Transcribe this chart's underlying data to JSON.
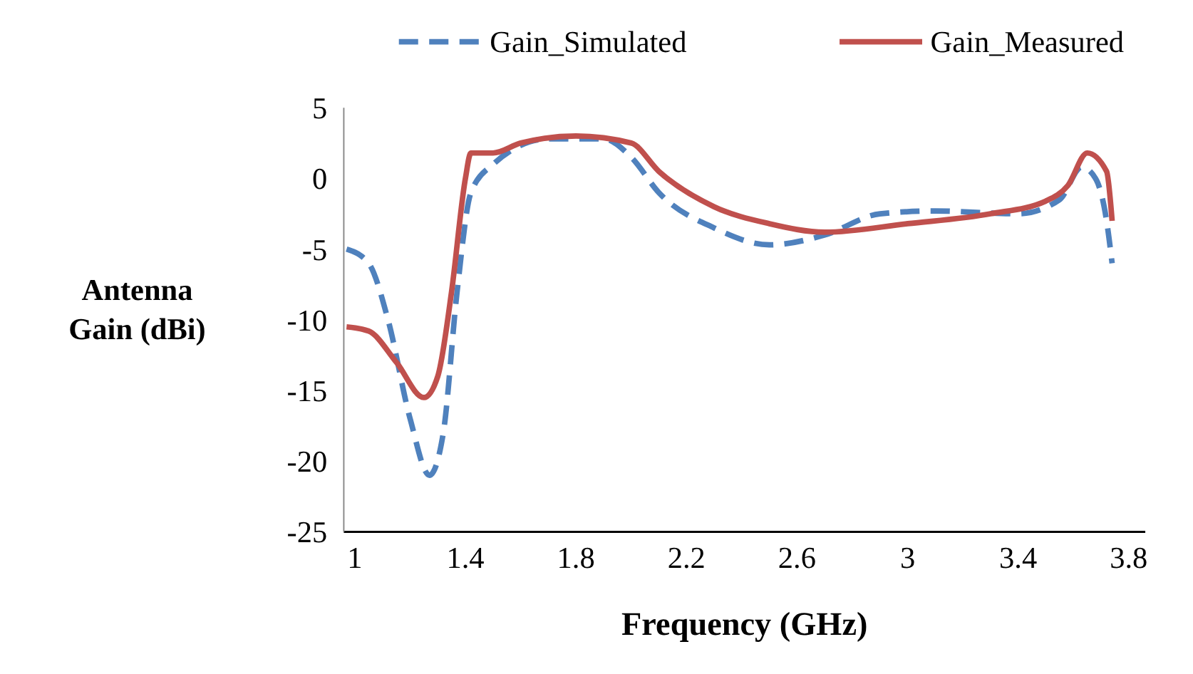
{
  "chart_data": {
    "type": "line",
    "xlabel": "Frequency (GHz)",
    "ylabel": "Antenna Gain (dBi)",
    "xlim": [
      0.96,
      3.86
    ],
    "ylim": [
      -25,
      5
    ],
    "xticks": [
      1,
      1.4,
      1.8,
      2.2,
      2.6,
      3,
      3.4,
      3.8
    ],
    "yticks": [
      -25,
      -20,
      -15,
      -10,
      -5,
      0,
      5
    ],
    "grid": false,
    "legend": "top",
    "marker": "none",
    "series": [
      {
        "name": "Gain_Simulated",
        "color": "#4f81bd",
        "line_style": "dashed",
        "x": [
          0.97,
          1.05,
          1.12,
          1.2,
          1.27,
          1.32,
          1.37,
          1.42,
          1.5,
          1.7,
          1.9,
          2,
          2.1,
          2.3,
          2.5,
          2.7,
          2.9,
          3.1,
          3.4,
          3.55,
          3.63,
          3.68,
          3.72,
          3.74
        ],
        "values": [
          -5,
          -6,
          -10,
          -17,
          -21,
          -18,
          -8,
          -1,
          1,
          2.8,
          2.8,
          1.5,
          -1,
          -3.5,
          -4.7,
          -4,
          -2.5,
          -2.3,
          -2.5,
          -1.5,
          0.8,
          0,
          -3,
          -6
        ]
      },
      {
        "name": "Gain_Measured",
        "color": "#c0504d",
        "line_style": "solid",
        "x": [
          0.97,
          1.05,
          1.15,
          1.25,
          1.3,
          1.35,
          1.4,
          1.42,
          1.5,
          1.6,
          1.8,
          2,
          2.1,
          2.3,
          2.5,
          2.7,
          3,
          3.3,
          3.5,
          3.58,
          3.65,
          3.72,
          3.74
        ],
        "values": [
          -10.5,
          -10.8,
          -13,
          -15.5,
          -14,
          -8,
          0,
          1.8,
          1.8,
          2.5,
          3,
          2.5,
          0.5,
          -2,
          -3.2,
          -3.8,
          -3.2,
          -2.5,
          -1.6,
          -0.5,
          1.8,
          0.5,
          -3
        ]
      }
    ]
  }
}
